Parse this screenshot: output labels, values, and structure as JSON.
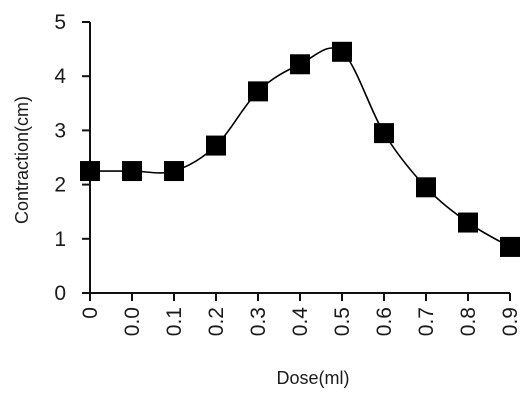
{
  "chart_data": {
    "type": "line",
    "title": "",
    "xlabel": "Dose(ml)",
    "ylabel": "Contraction(cm)",
    "x_tick_labels": [
      "0",
      "0.0",
      "0.1",
      "0.2",
      "0.3",
      "0.4",
      "0.5",
      "0.6",
      "0.7",
      "0.8",
      "0.9"
    ],
    "y_tick_labels": [
      "0",
      "1",
      "2",
      "3",
      "4",
      "5"
    ],
    "ylim": [
      0,
      5
    ],
    "grid": false,
    "marker": "square",
    "series": [
      {
        "color": "#000000",
        "values": [
          2.25,
          2.25,
          2.25,
          2.72,
          3.72,
          4.22,
          4.45,
          2.95,
          1.95,
          1.3,
          0.85
        ]
      }
    ]
  }
}
